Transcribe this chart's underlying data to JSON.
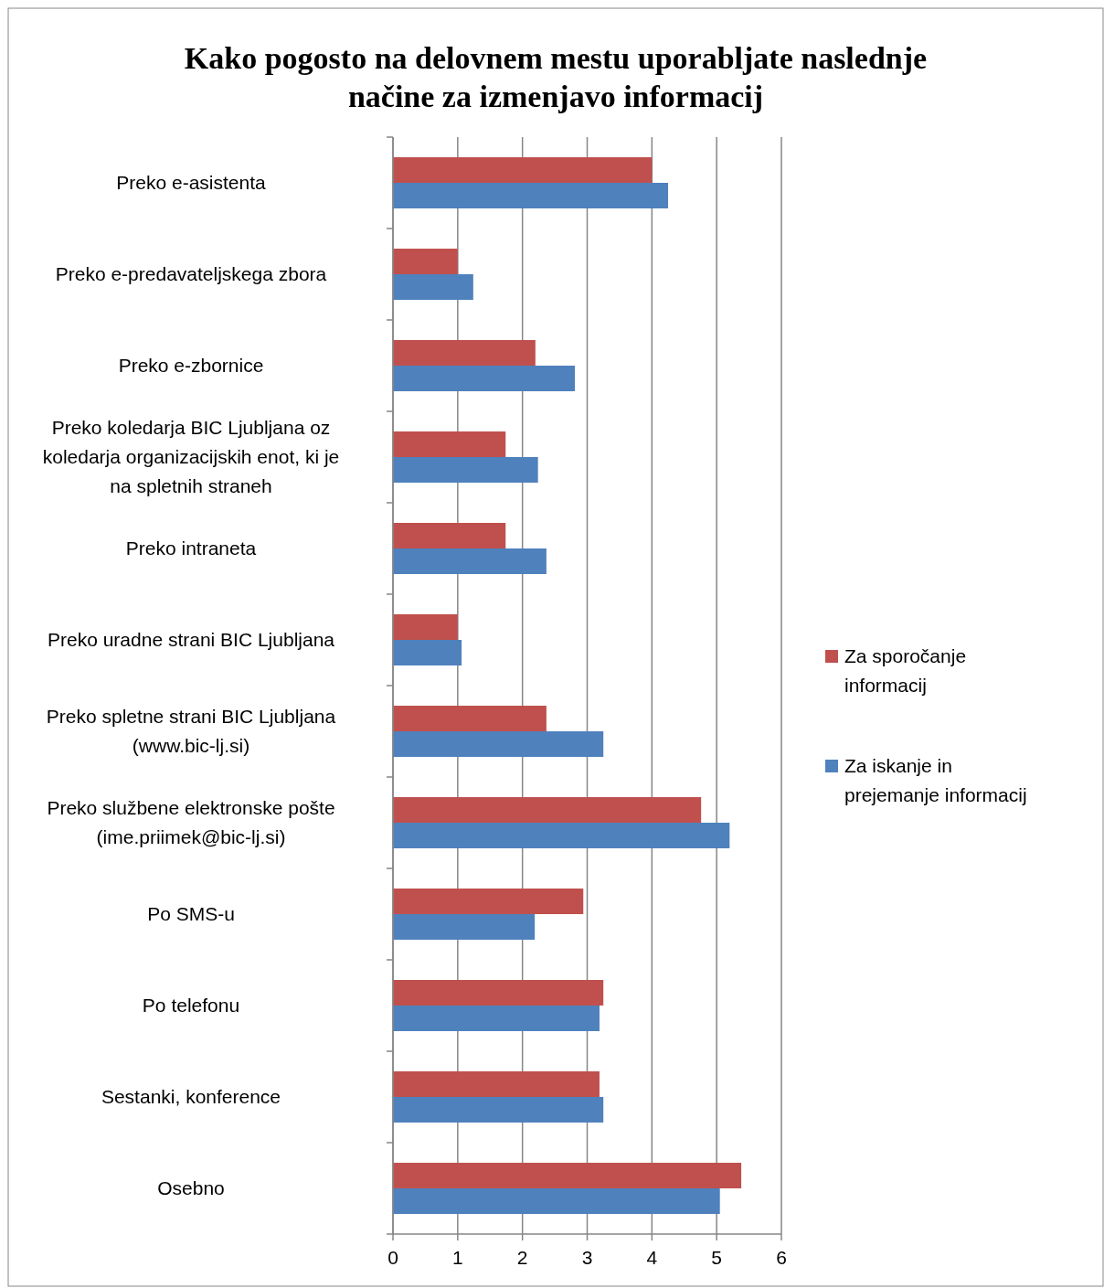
{
  "chart_data": {
    "type": "bar",
    "orientation": "horizontal",
    "title": "Kako pogosto na delovnem mestu uporabljate naslednje načine za izmenjavo informacij",
    "categories": [
      "Preko e-asistenta",
      "Preko e-predavateljskega zbora",
      "Preko e-zbornice",
      "Preko koledarja BIC Ljubljana oz koledarja organizacijskih enot, ki je na spletnih straneh",
      "Preko intraneta",
      "Preko uradne strani BIC Ljubljana",
      "Preko spletne strani BIC Ljubljana (www.bic-lj.si)",
      "Preko službene elektronske pošte (ime.priimek@bic-lj.si)",
      "Po SMS-u",
      "Po telefonu",
      "Sestanki, konference",
      "Osebno"
    ],
    "series": [
      {
        "name": "Za sporočanje informacij",
        "color": "#c0504d",
        "values": [
          4.0,
          1.0,
          2.2,
          1.74,
          1.74,
          1.0,
          2.37,
          4.76,
          2.94,
          3.25,
          3.19,
          5.38
        ]
      },
      {
        "name": "Za iskanje in prejemanje informacij",
        "color": "#4f81bd",
        "values": [
          4.25,
          1.24,
          2.81,
          2.24,
          2.37,
          1.06,
          3.25,
          5.2,
          2.19,
          3.19,
          3.25,
          5.05
        ]
      }
    ],
    "xlim": [
      0,
      6
    ],
    "xticks": [
      0,
      1,
      2,
      3,
      4,
      5,
      6
    ],
    "grid": "x",
    "legend": "right"
  }
}
